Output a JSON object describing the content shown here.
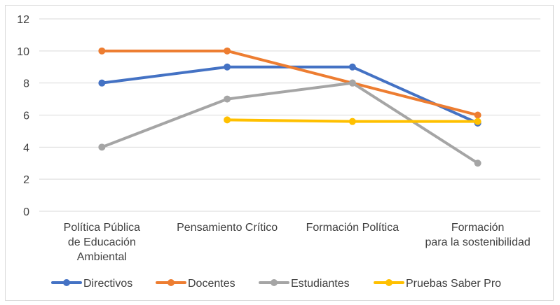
{
  "chart_data": {
    "type": "line",
    "title": "",
    "xlabel": "",
    "ylabel": "",
    "ylim": [
      0,
      12
    ],
    "yticks": [
      0,
      2,
      4,
      6,
      8,
      10,
      12
    ],
    "grid": true,
    "legend_position": "bottom",
    "categories": [
      [
        "Política Pública",
        "de Educación",
        "Ambiental"
      ],
      [
        "Pensamiento Crítico"
      ],
      [
        "Formación Política"
      ],
      [
        "Formación",
        "para la sostenibilidad"
      ]
    ],
    "series": [
      {
        "name": "Directivos",
        "color": "#4472c4",
        "values": [
          8,
          9,
          9,
          5.5
        ]
      },
      {
        "name": "Docentes",
        "color": "#ed7d31",
        "values": [
          10,
          10,
          8,
          6
        ]
      },
      {
        "name": "Estudiantes",
        "color": "#a5a5a5",
        "values": [
          4,
          7,
          8,
          3
        ]
      },
      {
        "name": "Pruebas Saber Pro",
        "color": "#ffc000",
        "values": [
          null,
          5.7,
          5.6,
          5.6
        ]
      }
    ]
  }
}
